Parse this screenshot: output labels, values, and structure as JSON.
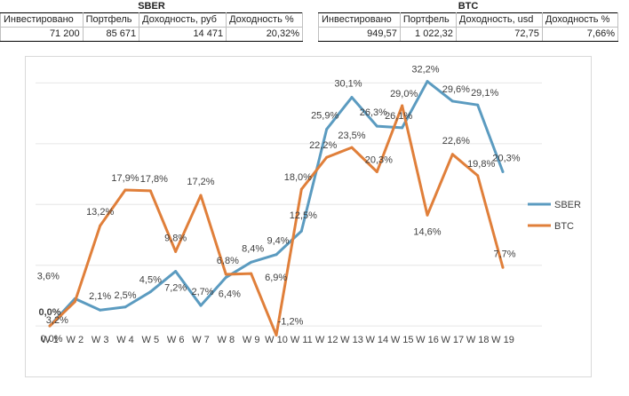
{
  "tables": [
    {
      "title": "SBER",
      "headers": [
        "Инвестировано",
        "Портфель",
        "Доходность, руб",
        "Доходность %"
      ],
      "values": [
        "71 200",
        "85 671",
        "14 471",
        "20,32%"
      ]
    },
    {
      "title": "BTC",
      "headers": [
        "Инвестировано",
        "Портфель",
        "Доходность, usd",
        "Доходность %"
      ],
      "values": [
        "949,57",
        "1 022,32",
        "72,75",
        "7,66%"
      ]
    }
  ],
  "chart_data": {
    "type": "line",
    "title": "",
    "xlabel": "",
    "ylabel": "",
    "ylim": [
      -1.5,
      34.5
    ],
    "grid": true,
    "legend": "right",
    "categories": [
      "W 1",
      "W 2",
      "W 3",
      "W 4",
      "W 5",
      "W 6",
      "W 7",
      "W 8",
      "W 9",
      "W 10",
      "W 11",
      "W 12",
      "W 13",
      "W 14",
      "W 15",
      "W 16",
      "W 17",
      "W 18",
      "W 19"
    ],
    "series": [
      {
        "name": "SBER",
        "color": "#5b9bc0",
        "values": [
          0.0,
          3.6,
          2.1,
          2.5,
          4.5,
          7.2,
          2.7,
          6.4,
          8.4,
          9.4,
          12.5,
          25.9,
          30.1,
          26.3,
          26.1,
          32.2,
          29.6,
          29.1,
          20.3
        ],
        "labels": [
          "0,0%",
          "3,6%",
          "2,1%",
          "2,5%",
          "4,5%",
          "7,2%",
          "2,7%",
          "6,4%",
          "8,4%",
          "9,4%",
          "12,5%",
          "25,9%",
          "30,1%",
          "26,3%",
          "26,1%",
          "32,2%",
          "29,6%",
          "29,1%",
          "20,3%"
        ]
      },
      {
        "name": "BTC",
        "color": "#e07f3a",
        "values": [
          0.0,
          3.2,
          13.2,
          17.9,
          17.8,
          9.8,
          17.2,
          6.8,
          6.9,
          -1.2,
          18.0,
          22.2,
          23.5,
          20.3,
          29.0,
          14.6,
          22.6,
          19.8,
          7.7
        ],
        "labels": [
          "0,0%",
          "3,2%",
          "13,2%",
          "17,9%",
          "17,8%",
          "9,8%",
          "17,2%",
          "6,8%",
          "6,9%",
          "-1,2%",
          "18,0%",
          "22,2%",
          "23,5%",
          "20,3%",
          "29,0%",
          "14,6%",
          "22,6%",
          "19,8%",
          "7,7%"
        ]
      }
    ]
  }
}
